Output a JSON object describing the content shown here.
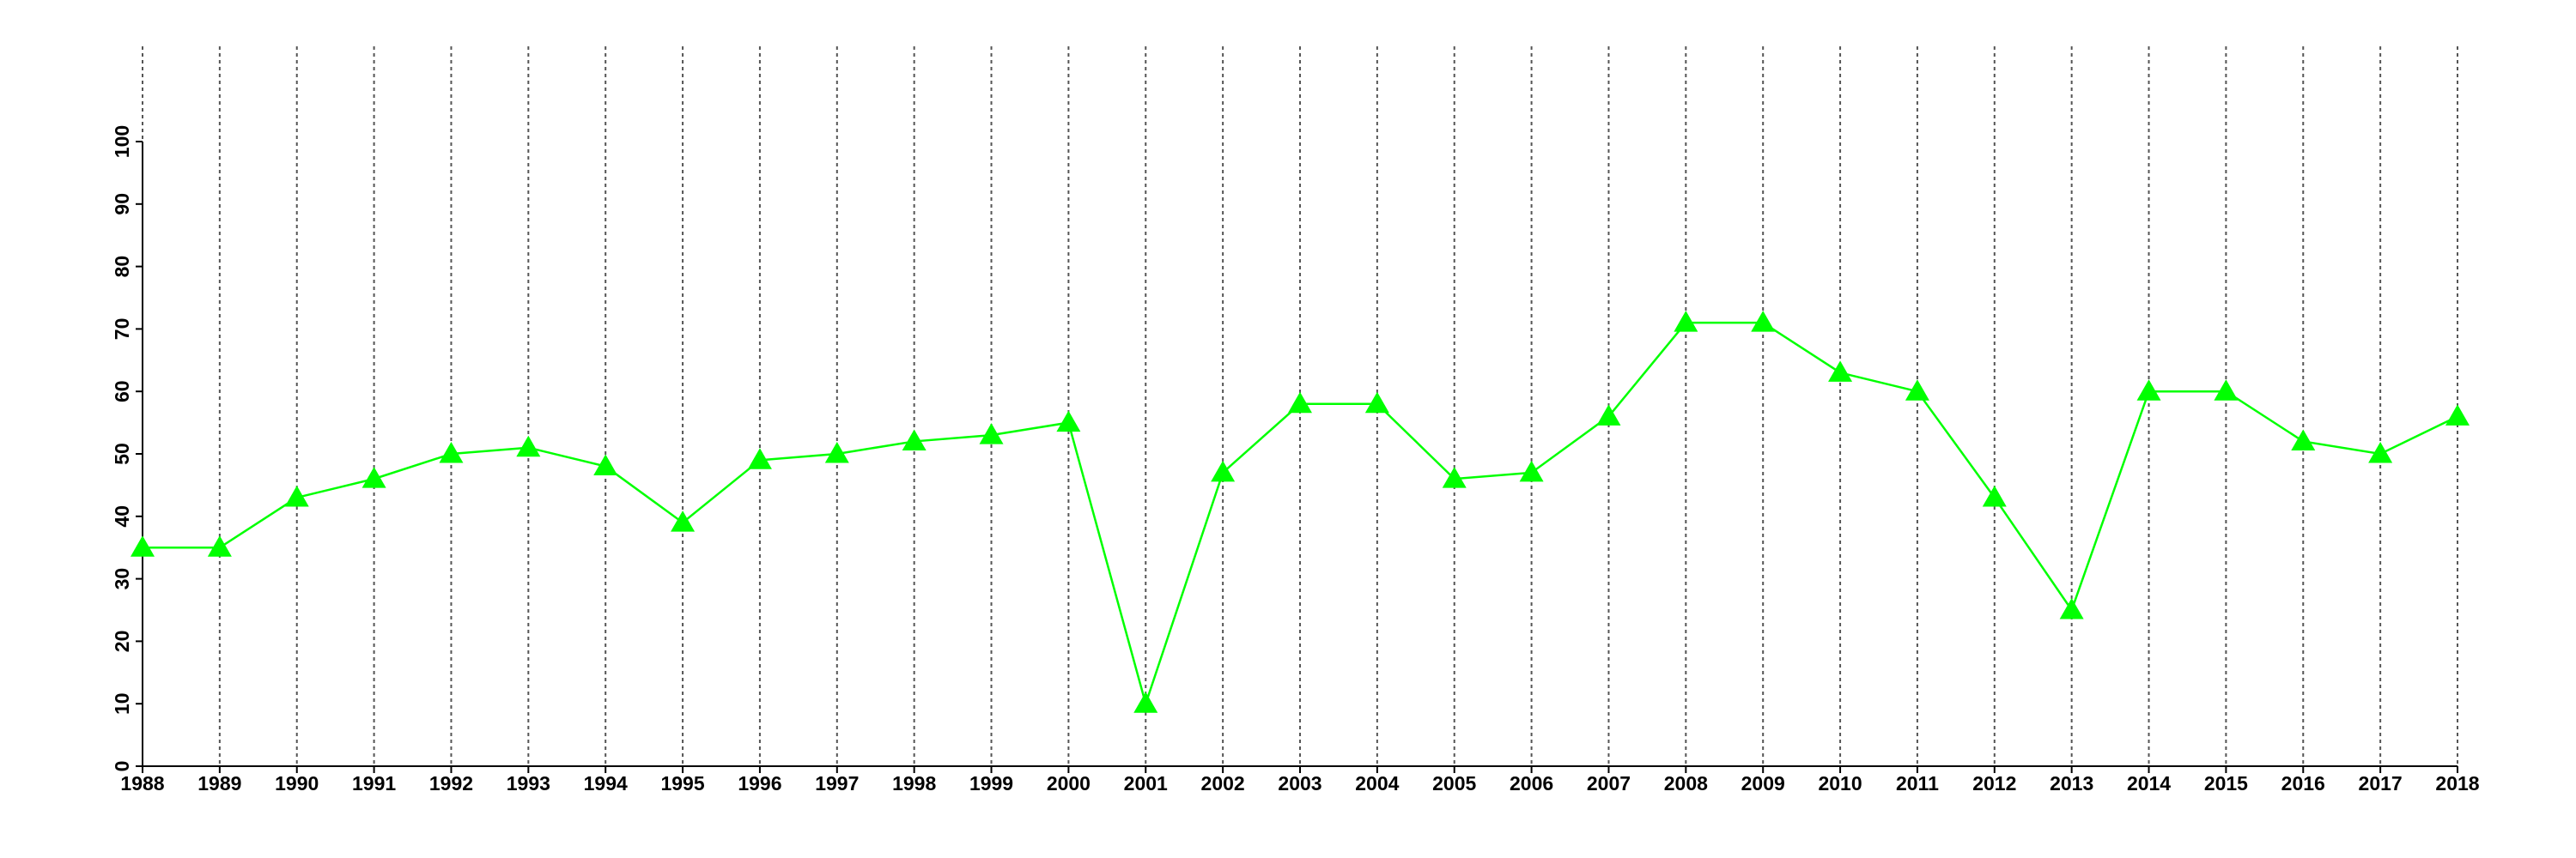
{
  "chart_data": {
    "type": "line",
    "x": [
      1988,
      1989,
      1990,
      1991,
      1992,
      1993,
      1994,
      1995,
      1996,
      1997,
      1998,
      1999,
      2000,
      2001,
      2002,
      2003,
      2004,
      2005,
      2006,
      2007,
      2008,
      2009,
      2010,
      2011,
      2012,
      2013,
      2014,
      2015,
      2016,
      2017,
      2018
    ],
    "series": [
      {
        "color": "#00ff00",
        "marker": "triangle",
        "values": [
          35,
          35,
          43,
          46,
          50,
          51,
          48,
          39,
          49,
          50,
          52,
          53,
          55,
          10,
          47,
          58,
          58,
          46,
          47,
          56,
          71,
          71,
          63,
          60,
          43,
          25,
          60,
          60,
          52,
          50,
          56
        ]
      }
    ],
    "xlim": [
      1988,
      2018
    ],
    "xticks": [
      1988,
      1989,
      1990,
      1991,
      1992,
      1993,
      1994,
      1995,
      1996,
      1997,
      1998,
      1999,
      2000,
      2001,
      2002,
      2003,
      2004,
      2005,
      2006,
      2007,
      2008,
      2009,
      2010,
      2011,
      2012,
      2013,
      2014,
      2015,
      2016,
      2017,
      2018
    ],
    "ylim": [
      0,
      100
    ],
    "yticks": [
      0,
      10,
      20,
      30,
      40,
      50,
      60,
      70,
      80,
      90,
      100
    ],
    "grid": "x"
  }
}
